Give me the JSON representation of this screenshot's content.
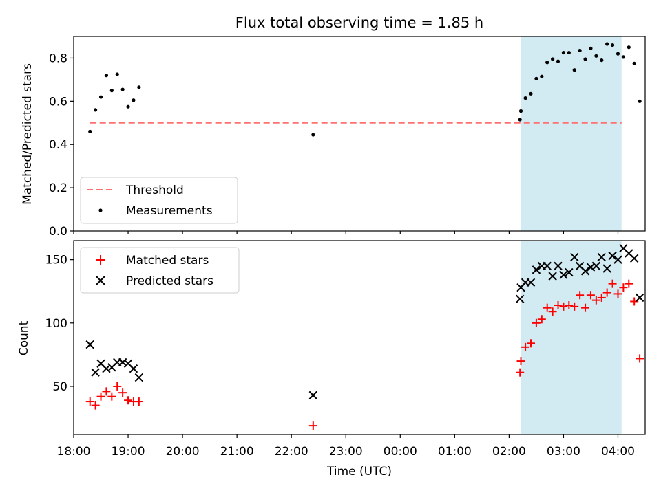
{
  "chart_data": [
    {
      "type": "scatter",
      "title": "Flux total observing time = 1.85 h",
      "xlabel": "",
      "ylabel": "Matched/Predicted stars",
      "xlim": [
        "18:00",
        "04:30"
      ],
      "ylim": [
        0,
        0.9
      ],
      "yticks": [
        0.0,
        0.2,
        0.4,
        0.6,
        0.8
      ],
      "ytick_labels": [
        "0.0",
        "0.2",
        "0.4",
        "0.6",
        "0.8"
      ],
      "grid": false,
      "legend_position": "lower-left",
      "highlight_span": {
        "from": "02:13",
        "to": "04:04",
        "color": "#add8e6"
      },
      "threshold": {
        "name": "Threshold",
        "y": 0.5,
        "from": "18:18",
        "to": "04:04",
        "color": "#ff7070",
        "style": "dashed"
      },
      "series": [
        {
          "name": "Measurements",
          "color": "#000000",
          "marker": "dot",
          "points": [
            [
              "18:18",
              0.46
            ],
            [
              "18:24",
              0.56
            ],
            [
              "18:30",
              0.62
            ],
            [
              "18:36",
              0.72
            ],
            [
              "18:42",
              0.65
            ],
            [
              "18:48",
              0.725
            ],
            [
              "18:54",
              0.655
            ],
            [
              "19:00",
              0.575
            ],
            [
              "19:06",
              0.605
            ],
            [
              "19:12",
              0.665
            ],
            [
              "22:24",
              0.445
            ],
            [
              "02:12",
              0.515
            ],
            [
              "02:13",
              0.555
            ],
            [
              "02:18",
              0.615
            ],
            [
              "02:24",
              0.635
            ],
            [
              "02:30",
              0.705
            ],
            [
              "02:36",
              0.715
            ],
            [
              "02:42",
              0.78
            ],
            [
              "02:48",
              0.795
            ],
            [
              "02:54",
              0.785
            ],
            [
              "03:00",
              0.825
            ],
            [
              "03:06",
              0.825
            ],
            [
              "03:12",
              0.745
            ],
            [
              "03:18",
              0.835
            ],
            [
              "03:24",
              0.795
            ],
            [
              "03:30",
              0.845
            ],
            [
              "03:36",
              0.81
            ],
            [
              "03:42",
              0.79
            ],
            [
              "03:48",
              0.865
            ],
            [
              "03:54",
              0.86
            ],
            [
              "04:00",
              0.82
            ],
            [
              "04:06",
              0.805
            ],
            [
              "04:12",
              0.85
            ],
            [
              "04:18",
              0.775
            ],
            [
              "04:24",
              0.6
            ]
          ]
        }
      ]
    },
    {
      "type": "scatter",
      "title": "",
      "xlabel": "Time (UTC)",
      "ylabel": "Count",
      "xlim": [
        "18:00",
        "04:30"
      ],
      "ylim": [
        12,
        165
      ],
      "yticks": [
        50,
        100,
        150
      ],
      "ytick_labels": [
        "50",
        "100",
        "150"
      ],
      "xticks": [
        "18:00",
        "19:00",
        "20:00",
        "21:00",
        "22:00",
        "23:00",
        "00:00",
        "01:00",
        "02:00",
        "03:00",
        "04:00"
      ],
      "grid": false,
      "legend_position": "upper-left",
      "highlight_span": {
        "from": "02:13",
        "to": "04:04",
        "color": "#add8e6"
      },
      "series": [
        {
          "name": "Matched stars",
          "color": "#ff0000",
          "marker": "plus",
          "points": [
            [
              "18:18",
              38
            ],
            [
              "18:24",
              35
            ],
            [
              "18:30",
              42
            ],
            [
              "18:36",
              46
            ],
            [
              "18:42",
              42
            ],
            [
              "18:48",
              50
            ],
            [
              "18:54",
              45
            ],
            [
              "19:00",
              39
            ],
            [
              "19:06",
              38
            ],
            [
              "19:12",
              38
            ],
            [
              "22:24",
              19
            ],
            [
              "02:12",
              61
            ],
            [
              "02:13",
              70
            ],
            [
              "02:18",
              81
            ],
            [
              "02:24",
              84
            ],
            [
              "02:30",
              100
            ],
            [
              "02:36",
              103
            ],
            [
              "02:42",
              112
            ],
            [
              "02:48",
              109
            ],
            [
              "02:54",
              114
            ],
            [
              "03:00",
              113
            ],
            [
              "03:06",
              114
            ],
            [
              "03:12",
              113
            ],
            [
              "03:18",
              122
            ],
            [
              "03:24",
              112
            ],
            [
              "03:30",
              122
            ],
            [
              "03:36",
              118
            ],
            [
              "03:42",
              120
            ],
            [
              "03:48",
              124
            ],
            [
              "03:54",
              131
            ],
            [
              "04:00",
              123
            ],
            [
              "04:06",
              128
            ],
            [
              "04:12",
              131
            ],
            [
              "04:18",
              117
            ],
            [
              "04:24",
              72
            ]
          ]
        },
        {
          "name": "Predicted stars",
          "color": "#000000",
          "marker": "x",
          "points": [
            [
              "18:18",
              83
            ],
            [
              "18:24",
              61
            ],
            [
              "18:30",
              68
            ],
            [
              "18:36",
              64
            ],
            [
              "18:42",
              65
            ],
            [
              "18:48",
              69
            ],
            [
              "18:54",
              69
            ],
            [
              "19:00",
              68
            ],
            [
              "19:06",
              64
            ],
            [
              "19:12",
              57
            ],
            [
              "22:24",
              43
            ],
            [
              "02:12",
              119
            ],
            [
              "02:13",
              128
            ],
            [
              "02:18",
              132
            ],
            [
              "02:24",
              132
            ],
            [
              "02:30",
              142
            ],
            [
              "02:36",
              145
            ],
            [
              "02:42",
              145
            ],
            [
              "02:48",
              137
            ],
            [
              "02:54",
              145
            ],
            [
              "03:00",
              138
            ],
            [
              "03:06",
              140
            ],
            [
              "03:12",
              152
            ],
            [
              "03:18",
              145
            ],
            [
              "03:24",
              141
            ],
            [
              "03:30",
              144
            ],
            [
              "03:36",
              145
            ],
            [
              "03:42",
              152
            ],
            [
              "03:48",
              143
            ],
            [
              "03:54",
              153
            ],
            [
              "04:00",
              150
            ],
            [
              "04:06",
              159
            ],
            [
              "04:12",
              155
            ],
            [
              "04:18",
              151
            ],
            [
              "04:24",
              120
            ]
          ]
        }
      ]
    }
  ]
}
